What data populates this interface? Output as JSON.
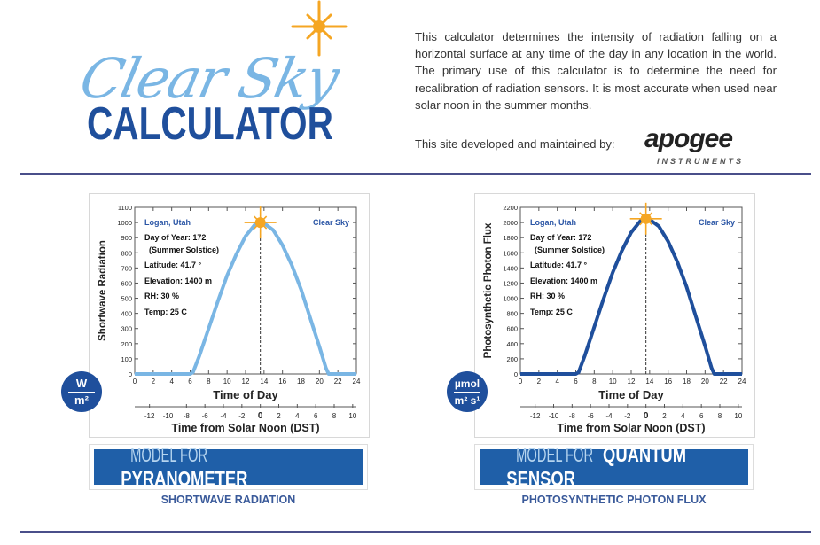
{
  "logo": {
    "script": "Clear Sky",
    "main": "CALCULATOR"
  },
  "intro": "This calculator determines the intensity of radiation falling on a horizontal surface at any time of the day in any location in the world. The primary use of this calculator is to determine the need for recalibration of radiation sensors. It is most accurate when used near solar noon in the summer months.",
  "developer": {
    "label": "This site developed and maintained by:",
    "brand": "apogee",
    "brand_sub": "INSTRUMENTS"
  },
  "colors": {
    "navy": "#1f4f9c",
    "light_blue": "#7ab6e4",
    "sun": "#f5a623",
    "button": "#1f5fa8"
  },
  "models": [
    {
      "unit_top": "W",
      "unit_bottom": "m²",
      "button_prefix": "MODEL FOR ",
      "button_name": "PYRANOMETER",
      "caption": "SHORTWAVE RADIATION"
    },
    {
      "unit_top": "µmol",
      "unit_bottom": "m² s¹",
      "button_prefix": "MODEL FOR ",
      "button_name": "QUANTUM SENSOR",
      "caption": "PHOTOSYNTHETIC PHOTON FLUX"
    }
  ],
  "chart_data": [
    {
      "type": "line",
      "ylabel": "Shortwave Radiation",
      "xlabel": "Time of Day",
      "x2label": "Time from Solar Noon (DST)",
      "ylim": [
        0,
        1100
      ],
      "yticks": [
        0,
        100,
        200,
        300,
        400,
        500,
        600,
        700,
        800,
        900,
        1000,
        1100
      ],
      "xlim": [
        0,
        24
      ],
      "xticks": [
        0,
        2,
        4,
        6,
        8,
        10,
        12,
        14,
        16,
        18,
        20,
        22,
        24
      ],
      "x2ticks": [
        -12,
        -10,
        -8,
        -6,
        -4,
        -2,
        0,
        2,
        4,
        6,
        8,
        10
      ],
      "solar_noon": 13.6,
      "line_color": "#7ab6e4",
      "annotations": {
        "location": "Logan, Utah",
        "sky": "Clear Sky",
        "doy": "Day of Year: 172",
        "doy_note": "(Summer Solstice)",
        "lat": "Latitude: 41.7 °",
        "elev": "Elevation: 1400 m",
        "rh": "RH: 30 %",
        "temp": "Temp: 25 C"
      },
      "x": [
        0,
        6,
        6.3,
        7,
        8,
        9,
        10,
        11,
        12,
        13,
        13.6,
        14,
        15,
        16,
        17,
        18,
        19,
        20,
        20.7,
        21,
        24
      ],
      "y": [
        0,
        0,
        10,
        120,
        300,
        480,
        650,
        790,
        910,
        985,
        1000,
        995,
        950,
        850,
        720,
        560,
        370,
        180,
        40,
        0,
        0
      ]
    },
    {
      "type": "line",
      "ylabel": "Photosynthetic Photon Flux",
      "xlabel": "Time of Day",
      "x2label": "Time from Solar Noon (DST)",
      "ylim": [
        0,
        2200
      ],
      "yticks": [
        0,
        200,
        400,
        600,
        800,
        1000,
        1200,
        1400,
        1600,
        1800,
        2000,
        2200
      ],
      "xlim": [
        0,
        24
      ],
      "xticks": [
        0,
        2,
        4,
        6,
        8,
        10,
        12,
        14,
        16,
        18,
        20,
        22,
        24
      ],
      "x2ticks": [
        -12,
        -10,
        -8,
        -6,
        -4,
        -2,
        0,
        2,
        4,
        6,
        8,
        10
      ],
      "solar_noon": 13.6,
      "line_color": "#1f4f9c",
      "annotations": {
        "location": "Logan, Utah",
        "sky": "Clear Sky",
        "doy": "Day of Year: 172",
        "doy_note": "(Summer Solstice)",
        "lat": "Latitude: 41.7 °",
        "elev": "Elevation: 1400 m",
        "rh": "RH: 30 %",
        "temp": "Temp: 25 C"
      },
      "x": [
        0,
        6,
        6.3,
        7,
        8,
        9,
        10,
        11,
        12,
        13,
        13.6,
        14,
        15,
        16,
        17,
        18,
        19,
        20,
        20.7,
        21,
        24
      ],
      "y": [
        0,
        0,
        20,
        250,
        620,
        990,
        1340,
        1630,
        1870,
        2020,
        2050,
        2040,
        1950,
        1750,
        1480,
        1150,
        760,
        370,
        80,
        0,
        0
      ]
    }
  ]
}
